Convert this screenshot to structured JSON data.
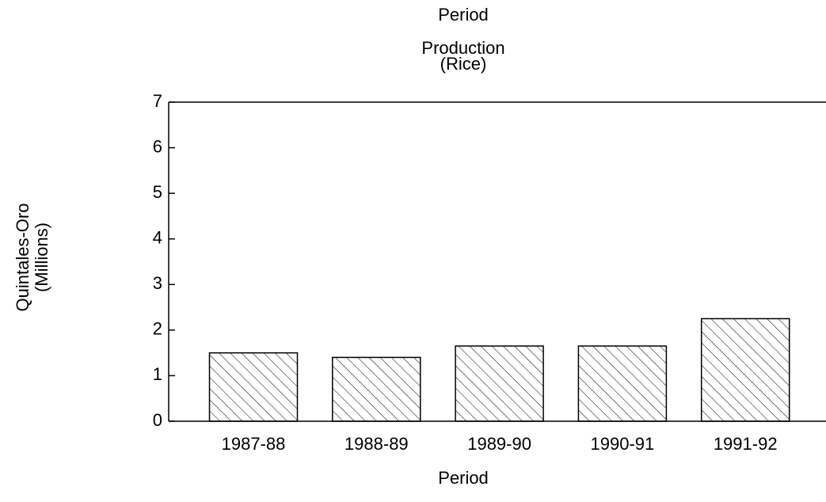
{
  "chart_data": {
    "type": "bar",
    "header": "Period",
    "title": "Production",
    "subtitle": "(Rice)",
    "y_label": [
      "Quintales-Oro",
      "(Millions)"
    ],
    "x_label": "Period",
    "categories": [
      "1987-88",
      "1988-89",
      "1989-90",
      "1990-91",
      "1991-92"
    ],
    "values": [
      1.5,
      1.4,
      1.65,
      1.65,
      2.25
    ],
    "color": "#000000",
    "ylim": [
      0,
      7
    ],
    "yticks": [
      0,
      1,
      2,
      3,
      4,
      5,
      6,
      7
    ],
    "grid": false
  }
}
